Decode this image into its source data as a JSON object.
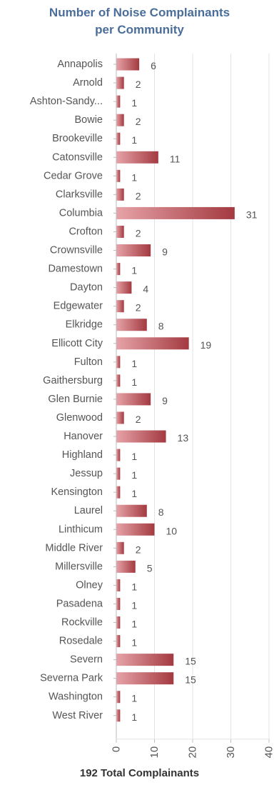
{
  "chart_data": {
    "type": "bar",
    "orientation": "horizontal",
    "title_line1": "Number of Noise Complainants",
    "title_line2": "per Community",
    "footer": "192 Total Complainants",
    "categories": [
      "Annapolis",
      "Arnold",
      "Ashton-Sandy...",
      "Bowie",
      "Brookeville",
      "Catonsville",
      "Cedar Grove",
      "Clarksville",
      "Columbia",
      "Crofton",
      "Crownsville",
      "Damestown",
      "Dayton",
      "Edgewater",
      "Elkridge",
      "Ellicott City",
      "Fulton",
      "Gaithersburg",
      "Glen Burnie",
      "Glenwood",
      "Hanover",
      "Highland",
      "Jessup",
      "Kensington",
      "Laurel",
      "Linthicum",
      "Middle River",
      "Millersville",
      "Olney",
      "Pasadena",
      "Rockville",
      "Rosedale",
      "Severn",
      "Severna Park",
      "Washington",
      "West River"
    ],
    "values": [
      6,
      2,
      1,
      2,
      1,
      11,
      1,
      2,
      31,
      2,
      9,
      1,
      4,
      2,
      8,
      19,
      1,
      1,
      9,
      2,
      13,
      1,
      1,
      1,
      8,
      10,
      2,
      5,
      1,
      1,
      1,
      1,
      15,
      15,
      1,
      1
    ],
    "xlim": [
      0,
      40
    ],
    "xticks": [
      "0",
      "10",
      "20",
      "30",
      "40"
    ],
    "grid": true,
    "colors": {
      "bar_dark": "#a33a40",
      "bar_light": "#e6a3a8",
      "title": "#4a6d9a",
      "grid": "#e3e3e3",
      "axis": "#bbbbbb"
    }
  }
}
